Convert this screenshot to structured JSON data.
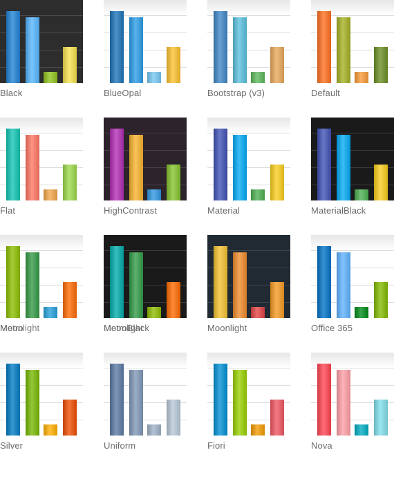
{
  "themes": [
    {
      "name": "Black",
      "labels": [
        "Black"
      ],
      "bg": "dark",
      "colors": [
        "#1f82d6",
        "#55b5ff",
        "#8fc31c",
        "#f6e34c"
      ]
    },
    {
      "name": "BlueOpal",
      "labels": [
        "BlueOpal"
      ],
      "bg": "light",
      "colors": [
        "#1c74b8",
        "#2b9de6",
        "#77c8f3",
        "#fbc02d"
      ]
    },
    {
      "name": "Bootstrap (v3)",
      "labels": [
        "Bootstrap (v3)"
      ],
      "bg": "light",
      "colors": [
        "#3f86c6",
        "#5bc0de",
        "#5cb85c",
        "#e9a85b"
      ]
    },
    {
      "name": "Default",
      "labels": [
        "Default"
      ],
      "bg": "light",
      "colors": [
        "#ff6f1f",
        "#a5b023",
        "#f99a37",
        "#6b8e23"
      ]
    },
    {
      "name": "Flat",
      "labels": [
        "Flat"
      ],
      "bg": "light",
      "colors": [
        "#10c4b2",
        "#ff7663",
        "#f2a64b",
        "#9cd84b"
      ]
    },
    {
      "name": "HighContrast",
      "labels": [
        "HighContrast"
      ],
      "bg": "purple",
      "colors": [
        "#b22cb5",
        "#f8b32c",
        "#2e96e0",
        "#85c42c"
      ]
    },
    {
      "name": "Material",
      "labels": [
        "Material"
      ],
      "bg": "light",
      "colors": [
        "#3f51b5",
        "#03a9f4",
        "#4caf50",
        "#f9ce1d"
      ]
    },
    {
      "name": "MaterialBlack",
      "labels": [
        "MaterialBlack"
      ],
      "bg": "black",
      "colors": [
        "#3f51b5",
        "#03a9f4",
        "#4caf50",
        "#f9ce1d"
      ]
    },
    {
      "name": "Metro",
      "labels": [
        "Metro",
        "Moonlight"
      ],
      "bg": "light",
      "colors": [
        "#8dbf00",
        "#339944",
        "#25a0da",
        "#ff6a00"
      ]
    },
    {
      "name": "MetroBlack",
      "labels": [
        "MetroBlack",
        "Moonlight"
      ],
      "bg": "black",
      "colors": [
        "#00aba9",
        "#319b46",
        "#8ebc00",
        "#fe6a00"
      ]
    },
    {
      "name": "Moonlight",
      "labels": [
        "Moonlight"
      ],
      "bg": "navy",
      "colors": [
        "#f5c130",
        "#f08b2c",
        "#e24242",
        "#f59a21"
      ]
    },
    {
      "name": "Office 365",
      "labels": [
        "Office 365"
      ],
      "bg": "light",
      "colors": [
        "#0072c6",
        "#5db2ff",
        "#008a17",
        "#82ba00"
      ]
    },
    {
      "name": "Silver",
      "labels": [
        "Silver"
      ],
      "bg": "light",
      "colors": [
        "#007bc3",
        "#76b800",
        "#ffae00",
        "#ef4c00"
      ]
    },
    {
      "name": "Uniform",
      "labels": [
        "Uniform"
      ],
      "bg": "light",
      "colors": [
        "#5a7aa3",
        "#7f97b8",
        "#9fb2c8",
        "#b7c8d7"
      ]
    },
    {
      "name": "Fiori",
      "labels": [
        "Fiori"
      ],
      "bg": "light",
      "colors": [
        "#008fd3",
        "#99d101",
        "#f39b02",
        "#f05662"
      ]
    },
    {
      "name": "Nova",
      "labels": [
        "Nova"
      ],
      "bg": "light",
      "colors": [
        "#ff4350",
        "#ff9ea5",
        "#00acc1",
        "#80deea"
      ]
    }
  ],
  "bar_values": [
    1.0,
    0.91,
    0.15,
    0.5
  ],
  "backgrounds": {
    "dark": {
      "fill": "#2d2d2d",
      "grid": "#4a4a4a"
    },
    "light": {
      "fill": "#ffffff",
      "grid": "#dcdcdc"
    },
    "purple": {
      "fill": "#2c232b",
      "grid": "#4d3f4a"
    },
    "black": {
      "fill": "#1a1a1a",
      "grid": "#3a3a3a"
    },
    "navy": {
      "fill": "#212a33",
      "grid": "#3a4550"
    }
  }
}
